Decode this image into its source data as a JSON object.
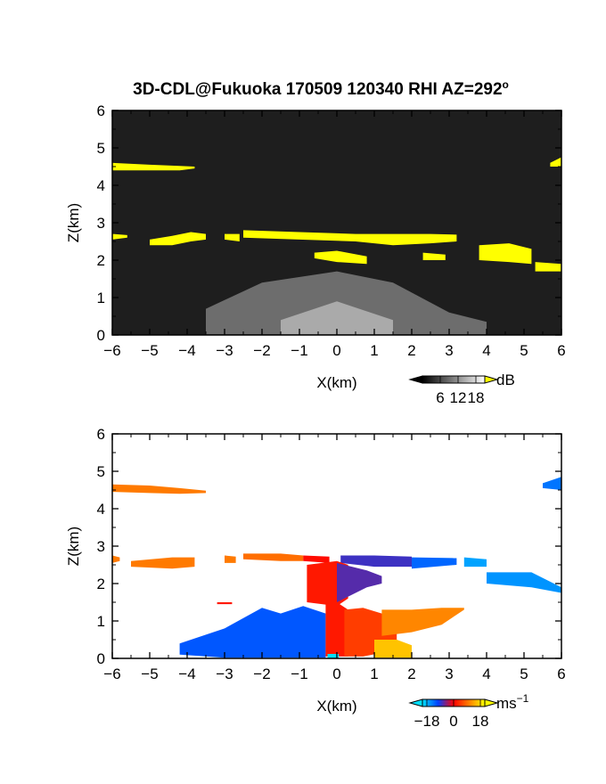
{
  "figure": {
    "title": "3D-CDL@Fukuoka 170509 120340 RHI AZ=292",
    "title_superscript": "o"
  },
  "chart_data": [
    {
      "type": "heatmap",
      "panel": "top",
      "title": "",
      "xlabel": "X(km)",
      "ylabel": "Z(km)",
      "xlim": [
        -6,
        6
      ],
      "ylim": [
        0,
        6
      ],
      "x_ticks": [
        "-6",
        "-5",
        "-4",
        "-3",
        "-2",
        "-1",
        "0",
        "1",
        "2",
        "3",
        "4",
        "5",
        "6"
      ],
      "y_ticks": [
        "0",
        "1",
        "2",
        "3",
        "4",
        "5",
        "6"
      ],
      "background_color": "#1e1e1e",
      "colorbar": {
        "unit": "dB",
        "tick_labels": [
          "6",
          "12",
          "18"
        ],
        "range": [
          0,
          21
        ],
        "colors": [
          "#000000",
          "#ffffff"
        ],
        "over_color": "#ffff00"
      },
      "features": [
        {
          "shape": "band",
          "values": [
            [
              -6,
              4.4,
              4.6
            ],
            [
              -5,
              4.4,
              4.55
            ],
            [
              -4.2,
              4.4,
              4.52
            ],
            [
              -3.8,
              4.45,
              4.5
            ]
          ],
          "value": 22
        },
        {
          "shape": "band",
          "values": [
            [
              5.7,
              4.5,
              4.6
            ],
            [
              6,
              4.5,
              4.75
            ]
          ],
          "value": 22
        },
        {
          "shape": "band",
          "values": [
            [
              -6,
              2.55,
              2.7
            ],
            [
              -5.6,
              2.6,
              2.67
            ]
          ],
          "value": 22
        },
        {
          "shape": "band",
          "values": [
            [
              -5.0,
              2.4,
              2.55
            ],
            [
              -4.4,
              2.4,
              2.65
            ],
            [
              -3.9,
              2.5,
              2.75
            ],
            [
              -3.5,
              2.55,
              2.7
            ]
          ],
          "value": 22
        },
        {
          "shape": "band",
          "values": [
            [
              -3.0,
              2.55,
              2.7
            ],
            [
              -2.6,
              2.5,
              2.7
            ]
          ],
          "value": 22
        },
        {
          "shape": "band",
          "values": [
            [
              -2.5,
              2.6,
              2.8
            ],
            [
              -1,
              2.55,
              2.75
            ],
            [
              0.5,
              2.5,
              2.7
            ],
            [
              1.5,
              2.4,
              2.7
            ],
            [
              2.5,
              2.45,
              2.7
            ],
            [
              3.2,
              2.5,
              2.68
            ]
          ],
          "value": 22
        },
        {
          "shape": "band",
          "values": [
            [
              -0.6,
              2.05,
              2.2
            ],
            [
              0,
              1.95,
              2.25
            ],
            [
              0.8,
              1.9,
              2.1
            ]
          ],
          "value": 22
        },
        {
          "shape": "band",
          "values": [
            [
              2.3,
              2.0,
              2.2
            ],
            [
              2.9,
              2.0,
              2.15
            ]
          ],
          "value": 22
        },
        {
          "shape": "band",
          "values": [
            [
              3.8,
              2.0,
              2.4
            ],
            [
              4.6,
              1.95,
              2.45
            ],
            [
              5.2,
              1.9,
              2.3
            ]
          ],
          "value": 22
        },
        {
          "shape": "band",
          "values": [
            [
              5.3,
              1.7,
              1.95
            ],
            [
              6,
              1.7,
              1.9
            ]
          ],
          "value": 22
        },
        {
          "shape": "band",
          "values": [
            [
              0.1,
              0.5,
              0.7
            ],
            [
              0.3,
              0.45,
              0.65
            ]
          ],
          "value": 22
        },
        {
          "shape": "band",
          "values": [
            [
              -3.5,
              0.02,
              0.7
            ],
            [
              -2,
              0.02,
              1.4
            ],
            [
              0,
              0.02,
              1.7
            ],
            [
              1.5,
              0.02,
              1.4
            ],
            [
              3,
              0.02,
              0.6
            ],
            [
              4,
              0.02,
              0.35
            ]
          ],
          "value": 9
        },
        {
          "shape": "band",
          "values": [
            [
              -1.5,
              0.02,
              0.4
            ],
            [
              0,
              0.02,
              0.9
            ],
            [
              1.5,
              0.02,
              0.4
            ]
          ],
          "value": 14
        }
      ]
    },
    {
      "type": "heatmap",
      "panel": "bottom",
      "title": "",
      "xlabel": "X(km)",
      "ylabel": "Z(km)",
      "xlim": [
        -6,
        6
      ],
      "ylim": [
        0,
        6
      ],
      "x_ticks": [
        "-6",
        "-5",
        "-4",
        "-3",
        "-2",
        "-1",
        "0",
        "1",
        "2",
        "3",
        "4",
        "5",
        "6"
      ],
      "y_ticks": [
        "0",
        "1",
        "2",
        "3",
        "4",
        "5",
        "6"
      ],
      "background_color": "#ffffff",
      "colorbar": {
        "unit": "ms",
        "unit_superscript": "−1",
        "tick_labels": [
          "−18",
          "0",
          "18"
        ],
        "range": [
          -21,
          21
        ],
        "colors": [
          "#00e0ff",
          "#0040ff",
          "#ff0000",
          "#ff8000",
          "#ffff00"
        ],
        "under_color": "#00e0ff",
        "over_color": "#ffff00"
      },
      "features": [
        {
          "shape": "band",
          "values": [
            [
              -6,
              4.45,
              4.65
            ],
            [
              -5,
              4.42,
              4.62
            ],
            [
              -4.2,
              4.4,
              4.55
            ],
            [
              -3.5,
              4.42,
              4.48
            ]
          ],
          "value": 10
        },
        {
          "shape": "band",
          "values": [
            [
              5.5,
              4.55,
              4.68
            ],
            [
              6,
              4.5,
              4.85
            ]
          ],
          "value": -14
        },
        {
          "shape": "band",
          "values": [
            [
              -6,
              2.55,
              2.75
            ],
            [
              -5.8,
              2.6,
              2.7
            ]
          ],
          "value": 10
        },
        {
          "shape": "band",
          "values": [
            [
              -5.5,
              2.45,
              2.6
            ],
            [
              -4.4,
              2.4,
              2.7
            ],
            [
              -3.8,
              2.45,
              2.7
            ]
          ],
          "value": 10
        },
        {
          "shape": "band",
          "values": [
            [
              -3.0,
              2.55,
              2.75
            ],
            [
              -2.7,
              2.55,
              2.72
            ]
          ],
          "value": 10
        },
        {
          "shape": "band",
          "values": [
            [
              -2.5,
              2.65,
              2.8
            ],
            [
              -1.5,
              2.6,
              2.8
            ],
            [
              -0.9,
              2.6,
              2.75
            ]
          ],
          "value": 9
        },
        {
          "shape": "band",
          "values": [
            [
              -0.9,
              2.6,
              2.75
            ],
            [
              -0.2,
              2.55,
              2.72
            ]
          ],
          "value": 1
        },
        {
          "shape": "band",
          "values": [
            [
              0.1,
              2.55,
              2.75
            ],
            [
              1,
              2.45,
              2.75
            ],
            [
              2,
              2.45,
              2.72
            ]
          ],
          "value": -8
        },
        {
          "shape": "band",
          "values": [
            [
              2,
              2.4,
              2.7
            ],
            [
              3.2,
              2.5,
              2.68
            ]
          ],
          "value": -13
        },
        {
          "shape": "band",
          "values": [
            [
              3.4,
              2.45,
              2.7
            ],
            [
              4.0,
              2.45,
              2.65
            ]
          ],
          "value": -17
        },
        {
          "shape": "band",
          "values": [
            [
              4.0,
              2.0,
              2.3
            ],
            [
              5.2,
              1.9,
              2.3
            ],
            [
              6,
              1.75,
              1.9
            ]
          ],
          "value": -16
        },
        {
          "shape": "band",
          "values": [
            [
              -0.8,
              1.5,
              2.5
            ],
            [
              0,
              1.4,
              2.6
            ],
            [
              0.3,
              1.6,
              2.5
            ]
          ],
          "value": 2
        },
        {
          "shape": "band",
          "values": [
            [
              0,
              1.5,
              2.55
            ],
            [
              0.8,
              1.9,
              2.35
            ],
            [
              1.2,
              2.0,
              2.2
            ]
          ],
          "value": -7
        },
        {
          "shape": "band",
          "values": [
            [
              -3.2,
              1.45,
              1.5
            ],
            [
              -2.8,
              1.45,
              1.5
            ]
          ],
          "value": 2
        },
        {
          "shape": "band",
          "values": [
            [
              -4.2,
              0.1,
              0.4
            ],
            [
              -3,
              0.02,
              0.8
            ],
            [
              -2,
              0.02,
              1.35
            ],
            [
              -1.5,
              0.02,
              1.2
            ],
            [
              -0.9,
              0.02,
              1.4
            ],
            [
              -0.3,
              0.02,
              1.2
            ]
          ],
          "value": -12
        },
        {
          "shape": "band",
          "values": [
            [
              -0.3,
              0.05,
              1.5
            ],
            [
              0,
              0.05,
              1.5
            ],
            [
              0.3,
              0.05,
              1.3
            ]
          ],
          "value": 2
        },
        {
          "shape": "band",
          "values": [
            [
              0.2,
              0.05,
              1.3
            ],
            [
              0.7,
              0.05,
              1.35
            ],
            [
              1.2,
              0.15,
              1.2
            ],
            [
              1.6,
              0.25,
              0.9
            ]
          ],
          "value": 5
        },
        {
          "shape": "band",
          "values": [
            [
              1.2,
              0.6,
              1.3
            ],
            [
              2.0,
              0.7,
              1.3
            ],
            [
              2.8,
              0.9,
              1.35
            ],
            [
              3.4,
              1.3,
              1.35
            ]
          ],
          "value": 11
        },
        {
          "shape": "band",
          "values": [
            [
              1.0,
              0.02,
              0.5
            ],
            [
              1.6,
              0.02,
              0.5
            ],
            [
              2.0,
              0.02,
              0.35
            ]
          ],
          "value": 16
        },
        {
          "shape": "band",
          "values": [
            [
              -0.25,
              0.0,
              0.12
            ],
            [
              0.05,
              0.0,
              0.12
            ]
          ],
          "value": -23
        }
      ]
    }
  ]
}
